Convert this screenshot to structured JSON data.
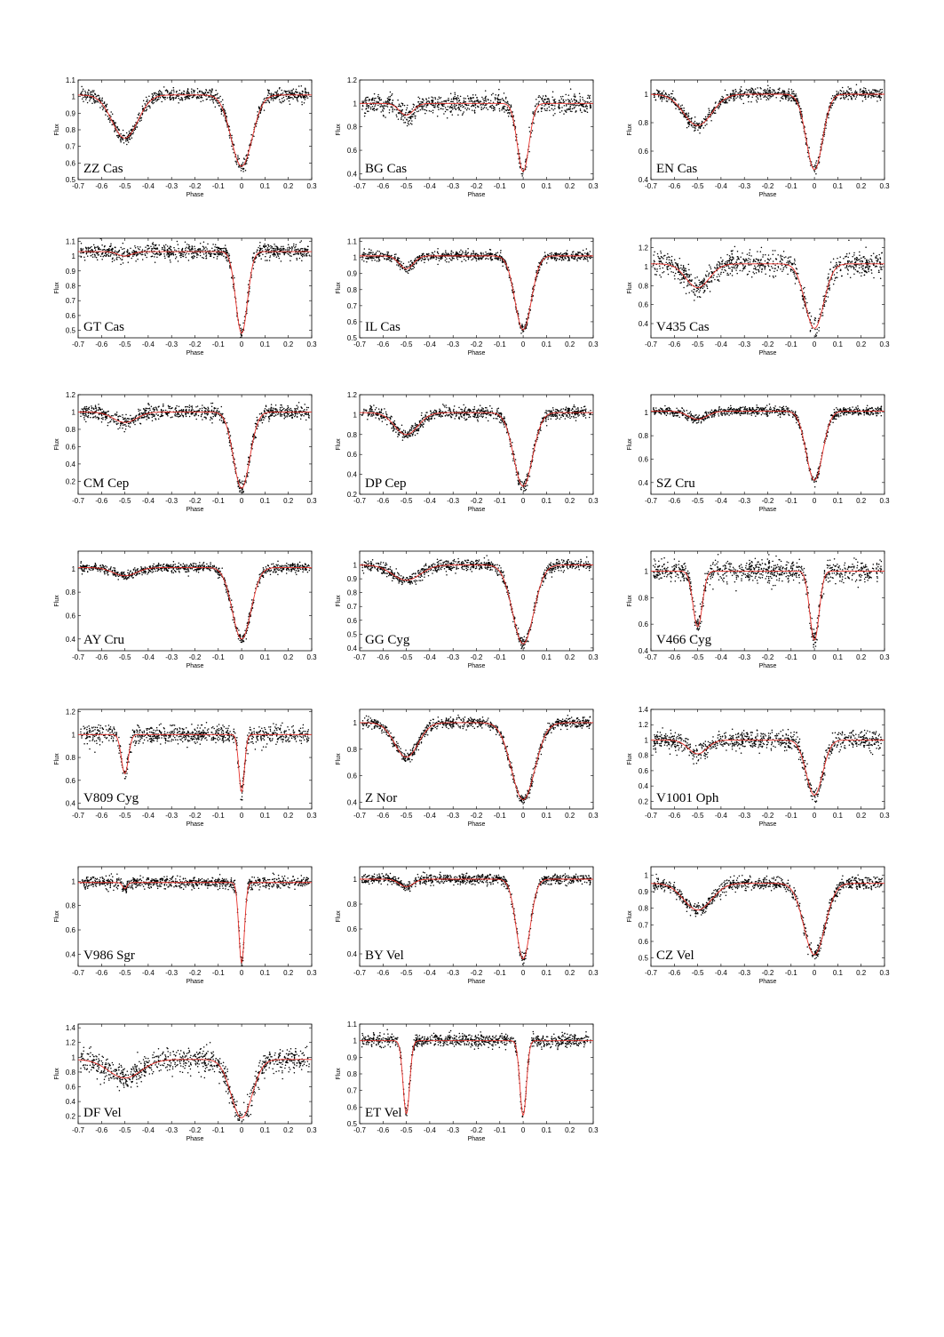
{
  "colors": {
    "model": "#e8302a",
    "points": "#000000",
    "frame": "#000000"
  },
  "chart_data": [
    {
      "type": "scatter",
      "title": "ZZ Cas",
      "xlabel": "Phase",
      "ylabel": "Flux",
      "xlim": [
        -0.7,
        0.3
      ],
      "ylim": [
        0.5,
        1.1
      ],
      "xticks": [
        "-0.7",
        "-0.6",
        "-0.5",
        "-0.4",
        "-0.3",
        "-0.2",
        "-0.1",
        "0",
        "0.1",
        "0.2",
        "0.3"
      ],
      "yticks": [
        "0.5",
        "0.6",
        "0.7",
        "0.8",
        "0.9",
        "1",
        "1.1"
      ],
      "series": [
        {
          "baseline": 1.01,
          "primary_min": 0.58,
          "secondary_min": 0.75,
          "width_p": 0.045,
          "width_s": 0.055,
          "scatter": 0.02
        }
      ]
    },
    {
      "type": "scatter",
      "title": "BG Cas",
      "xlabel": "Phase",
      "ylabel": "Flux",
      "xlim": [
        -0.7,
        0.3
      ],
      "ylim": [
        0.35,
        1.2
      ],
      "xticks": [
        "-0.7",
        "-0.6",
        "-0.5",
        "-0.4",
        "-0.3",
        "-0.2",
        "-0.1",
        "0",
        "0.1",
        "0.2",
        "0.3"
      ],
      "yticks": [
        "0.4",
        "0.6",
        "0.8",
        "1",
        "1.2"
      ],
      "series": [
        {
          "baseline": 1.0,
          "primary_min": 0.42,
          "secondary_min": 0.9,
          "width_p": 0.025,
          "width_s": 0.03,
          "scatter": 0.04
        }
      ]
    },
    {
      "type": "scatter",
      "title": "EN Cas",
      "xlabel": "Phase",
      "ylabel": "Flux",
      "xlim": [
        -0.7,
        0.3
      ],
      "ylim": [
        0.4,
        1.1
      ],
      "xticks": [
        "-0.7",
        "-0.6",
        "-0.5",
        "-0.4",
        "-0.3",
        "-0.2",
        "-0.1",
        "0",
        "0.1",
        "0.2",
        "0.3"
      ],
      "yticks": [
        "0.4",
        "0.6",
        "0.8",
        "1"
      ],
      "series": [
        {
          "baseline": 1.0,
          "primary_min": 0.47,
          "secondary_min": 0.78,
          "width_p": 0.035,
          "width_s": 0.06,
          "scatter": 0.02
        }
      ]
    },
    {
      "type": "scatter",
      "title": "GT Cas",
      "xlabel": "Phase",
      "ylabel": "Flux",
      "xlim": [
        -0.7,
        0.3
      ],
      "ylim": [
        0.45,
        1.12
      ],
      "xticks": [
        "-0.7",
        "-0.6",
        "-0.5",
        "-0.4",
        "-0.3",
        "-0.2",
        "-0.1",
        "0",
        "0.1",
        "0.2",
        "0.3"
      ],
      "yticks": [
        "0.5",
        "0.6",
        "0.7",
        "0.8",
        "0.9",
        "1",
        "1.1"
      ],
      "series": [
        {
          "baseline": 1.03,
          "primary_min": 0.48,
          "secondary_min": 1.0,
          "width_p": 0.025,
          "width_s": 0.03,
          "scatter": 0.025
        }
      ]
    },
    {
      "type": "scatter",
      "title": "IL Cas",
      "xlabel": "Phase",
      "ylabel": "Flux",
      "xlim": [
        -0.7,
        0.3
      ],
      "ylim": [
        0.5,
        1.12
      ],
      "xticks": [
        "-0.7",
        "-0.6",
        "-0.5",
        "-0.4",
        "-0.3",
        "-0.2",
        "-0.1",
        "0",
        "0.1",
        "0.2",
        "0.3"
      ],
      "yticks": [
        "0.5",
        "0.6",
        "0.7",
        "0.8",
        "0.9",
        "1",
        "1.1"
      ],
      "series": [
        {
          "baseline": 1.01,
          "primary_min": 0.55,
          "secondary_min": 0.93,
          "width_p": 0.035,
          "width_s": 0.03,
          "scatter": 0.015
        }
      ]
    },
    {
      "type": "scatter",
      "title": "V435 Cas",
      "xlabel": "Phase",
      "ylabel": "Flux",
      "xlim": [
        -0.7,
        0.3
      ],
      "ylim": [
        0.25,
        1.3
      ],
      "xticks": [
        "-0.7",
        "-0.6",
        "-0.5",
        "-0.4",
        "-0.3",
        "-0.2",
        "-0.1",
        "0",
        "0.1",
        "0.2",
        "0.3"
      ],
      "yticks": [
        "0.4",
        "0.6",
        "0.8",
        "1",
        "1.2"
      ],
      "series": [
        {
          "baseline": 1.03,
          "primary_min": 0.35,
          "secondary_min": 0.78,
          "width_p": 0.04,
          "width_s": 0.05,
          "scatter": 0.06
        }
      ]
    },
    {
      "type": "scatter",
      "title": "CM Cep",
      "xlabel": "Phase",
      "ylabel": "Flux",
      "xlim": [
        -0.7,
        0.3
      ],
      "ylim": [
        0.05,
        1.2
      ],
      "xticks": [
        "-0.7",
        "-0.6",
        "-0.5",
        "-0.4",
        "-0.3",
        "-0.2",
        "-0.1",
        "0",
        "0.1",
        "0.2",
        "0.3"
      ],
      "yticks": [
        "0.2",
        "0.4",
        "0.6",
        "0.8",
        "1",
        "1.2"
      ],
      "series": [
        {
          "baseline": 1.0,
          "primary_min": 0.12,
          "secondary_min": 0.88,
          "width_p": 0.035,
          "width_s": 0.05,
          "scatter": 0.04
        }
      ]
    },
    {
      "type": "scatter",
      "title": "DP Cep",
      "xlabel": "Phase",
      "ylabel": "Flux",
      "xlim": [
        -0.7,
        0.3
      ],
      "ylim": [
        0.2,
        1.2
      ],
      "xticks": [
        "-0.7",
        "-0.6",
        "-0.5",
        "-0.4",
        "-0.3",
        "-0.2",
        "-0.1",
        "0",
        "0.1",
        "0.2",
        "0.3"
      ],
      "yticks": [
        "0.2",
        "0.4",
        "0.6",
        "0.8",
        "1",
        "1.2"
      ],
      "series": [
        {
          "baseline": 1.02,
          "primary_min": 0.28,
          "secondary_min": 0.8,
          "width_p": 0.04,
          "width_s": 0.05,
          "scatter": 0.03
        }
      ]
    },
    {
      "type": "scatter",
      "title": "SZ Cru",
      "xlabel": "Phase",
      "ylabel": "Flux",
      "xlim": [
        -0.7,
        0.3
      ],
      "ylim": [
        0.3,
        1.15
      ],
      "xticks": [
        "-0.7",
        "-0.6",
        "-0.5",
        "-0.4",
        "-0.3",
        "-0.2",
        "-0.1",
        "0",
        "0.1",
        "0.2",
        "0.3"
      ],
      "yticks": [
        "0.4",
        "0.6",
        "0.8",
        "1"
      ],
      "series": [
        {
          "baseline": 1.01,
          "primary_min": 0.42,
          "secondary_min": 0.94,
          "width_p": 0.035,
          "width_s": 0.04,
          "scatter": 0.02
        }
      ]
    },
    {
      "type": "scatter",
      "title": "AY Cru",
      "xlabel": "Phase",
      "ylabel": "Flux",
      "xlim": [
        -0.7,
        0.3
      ],
      "ylim": [
        0.3,
        1.15
      ],
      "xticks": [
        "-0.7",
        "-0.6",
        "-0.5",
        "-0.4",
        "-0.3",
        "-0.2",
        "-0.1",
        "0",
        "0.1",
        "0.2",
        "0.3"
      ],
      "yticks": [
        "0.4",
        "0.6",
        "0.8",
        "1"
      ],
      "series": [
        {
          "baseline": 1.01,
          "primary_min": 0.4,
          "secondary_min": 0.94,
          "width_p": 0.04,
          "width_s": 0.05,
          "scatter": 0.02
        }
      ]
    },
    {
      "type": "scatter",
      "title": "GG Cyg",
      "xlabel": "Phase",
      "ylabel": "Flux",
      "xlim": [
        -0.7,
        0.3
      ],
      "ylim": [
        0.38,
        1.1
      ],
      "xticks": [
        "-0.7",
        "-0.6",
        "-0.5",
        "-0.4",
        "-0.3",
        "-0.2",
        "-0.1",
        "0",
        "0.1",
        "0.2",
        "0.3"
      ],
      "yticks": [
        "0.4",
        "0.5",
        "0.6",
        "0.7",
        "0.8",
        "0.9",
        "1"
      ],
      "series": [
        {
          "baseline": 1.0,
          "primary_min": 0.43,
          "secondary_min": 0.89,
          "width_p": 0.045,
          "width_s": 0.06,
          "scatter": 0.02
        }
      ]
    },
    {
      "type": "scatter",
      "title": "V466 Cyg",
      "xlabel": "Phase",
      "ylabel": "Flux",
      "xlim": [
        -0.7,
        0.3
      ],
      "ylim": [
        0.4,
        1.15
      ],
      "xticks": [
        "-0.7",
        "-0.6",
        "-0.5",
        "-0.4",
        "-0.3",
        "-0.2",
        "-0.1",
        "0",
        "0.1",
        "0.2",
        "0.3"
      ],
      "yticks": [
        "0.4",
        "0.6",
        "0.8",
        "1"
      ],
      "series": [
        {
          "baseline": 1.0,
          "primary_min": 0.48,
          "secondary_min": 0.58,
          "width_p": 0.02,
          "width_s": 0.02,
          "scatter": 0.04
        }
      ]
    },
    {
      "type": "scatter",
      "title": "V809 Cyg",
      "xlabel": "Phase",
      "ylabel": "Flux",
      "xlim": [
        -0.7,
        0.3
      ],
      "ylim": [
        0.35,
        1.22
      ],
      "xticks": [
        "-0.7",
        "-0.6",
        "-0.5",
        "-0.4",
        "-0.3",
        "-0.2",
        "-0.1",
        "0",
        "0.1",
        "0.2",
        "0.3"
      ],
      "yticks": [
        "0.4",
        "0.6",
        "0.8",
        "1",
        "1.2"
      ],
      "series": [
        {
          "baseline": 1.0,
          "primary_min": 0.5,
          "secondary_min": 0.66,
          "width_p": 0.012,
          "width_s": 0.015,
          "scatter": 0.04
        }
      ]
    },
    {
      "type": "scatter",
      "title": "Z Nor",
      "xlabel": "Phase",
      "ylabel": "Flux",
      "xlim": [
        -0.7,
        0.3
      ],
      "ylim": [
        0.35,
        1.1
      ],
      "xticks": [
        "-0.7",
        "-0.6",
        "-0.5",
        "-0.4",
        "-0.3",
        "-0.2",
        "-0.1",
        "0",
        "0.1",
        "0.2",
        "0.3"
      ],
      "yticks": [
        "0.4",
        "0.6",
        "0.8",
        "1"
      ],
      "series": [
        {
          "baseline": 1.0,
          "primary_min": 0.42,
          "secondary_min": 0.74,
          "width_p": 0.05,
          "width_s": 0.05,
          "scatter": 0.02
        }
      ]
    },
    {
      "type": "scatter",
      "title": "V1001 Oph",
      "xlabel": "Phase",
      "ylabel": "Flux",
      "xlim": [
        -0.7,
        0.3
      ],
      "ylim": [
        0.1,
        1.4
      ],
      "xticks": [
        "-0.7",
        "-0.6",
        "-0.5",
        "-0.4",
        "-0.3",
        "-0.2",
        "-0.1",
        "0",
        "0.1",
        "0.2",
        "0.3"
      ],
      "yticks": [
        "0.2",
        "0.4",
        "0.6",
        "0.8",
        "1",
        "1.2",
        "1.4"
      ],
      "series": [
        {
          "baseline": 1.0,
          "primary_min": 0.28,
          "secondary_min": 0.82,
          "width_p": 0.035,
          "width_s": 0.04,
          "scatter": 0.06
        }
      ]
    },
    {
      "type": "scatter",
      "title": "V986 Sgr",
      "xlabel": "Phase",
      "ylabel": "Flux",
      "xlim": [
        -0.7,
        0.3
      ],
      "ylim": [
        0.3,
        1.12
      ],
      "xticks": [
        "-0.7",
        "-0.6",
        "-0.5",
        "-0.4",
        "-0.3",
        "-0.2",
        "-0.1",
        "0",
        "0.1",
        "0.2",
        "0.3"
      ],
      "yticks": [
        "0.4",
        "0.6",
        "0.8",
        "1"
      ],
      "series": [
        {
          "baseline": 0.99,
          "primary_min": 0.33,
          "secondary_min": 0.94,
          "width_p": 0.012,
          "width_s": 0.01,
          "scatter": 0.025
        }
      ]
    },
    {
      "type": "scatter",
      "title": "BY Vel",
      "xlabel": "Phase",
      "ylabel": "Flux",
      "xlim": [
        -0.7,
        0.3
      ],
      "ylim": [
        0.3,
        1.1
      ],
      "xticks": [
        "-0.7",
        "-0.6",
        "-0.5",
        "-0.4",
        "-0.3",
        "-0.2",
        "-0.1",
        "0",
        "0.1",
        "0.2",
        "0.3"
      ],
      "yticks": [
        "0.4",
        "0.6",
        "0.8",
        "1"
      ],
      "series": [
        {
          "baseline": 1.0,
          "primary_min": 0.36,
          "secondary_min": 0.94,
          "width_p": 0.03,
          "width_s": 0.03,
          "scatter": 0.02
        }
      ]
    },
    {
      "type": "scatter",
      "title": "CZ Vel",
      "xlabel": "Phase",
      "ylabel": "Flux",
      "xlim": [
        -0.7,
        0.3
      ],
      "ylim": [
        0.45,
        1.05
      ],
      "xticks": [
        "-0.7",
        "-0.6",
        "-0.5",
        "-0.4",
        "-0.3",
        "-0.2",
        "-0.1",
        "0",
        "0.1",
        "0.2",
        "0.3"
      ],
      "yticks": [
        "0.5",
        "0.6",
        "0.7",
        "0.8",
        "0.9",
        "1"
      ],
      "series": [
        {
          "baseline": 0.95,
          "primary_min": 0.52,
          "secondary_min": 0.79,
          "width_p": 0.045,
          "width_s": 0.06,
          "scatter": 0.02
        }
      ]
    },
    {
      "type": "scatter",
      "title": "DF Vel",
      "xlabel": "Phase",
      "ylabel": "Flux",
      "xlim": [
        -0.7,
        0.3
      ],
      "ylim": [
        0.1,
        1.45
      ],
      "xticks": [
        "-0.7",
        "-0.6",
        "-0.5",
        "-0.4",
        "-0.3",
        "-0.2",
        "-0.1",
        "0",
        "0.1",
        "0.2",
        "0.3"
      ],
      "yticks": [
        "0.2",
        "0.4",
        "0.6",
        "0.8",
        "1",
        "1.2",
        "1.4"
      ],
      "series": [
        {
          "baseline": 0.97,
          "primary_min": 0.18,
          "secondary_min": 0.72,
          "width_p": 0.045,
          "width_s": 0.07,
          "scatter": 0.08
        }
      ]
    },
    {
      "type": "scatter",
      "title": "ET Vel",
      "xlabel": "Phase",
      "ylabel": "Flux",
      "xlim": [
        -0.7,
        0.3
      ],
      "ylim": [
        0.5,
        1.1
      ],
      "xticks": [
        "-0.7",
        "-0.6",
        "-0.5",
        "-0.4",
        "-0.3",
        "-0.2",
        "-0.1",
        "0",
        "0.1",
        "0.2",
        "0.3"
      ],
      "yticks": [
        "0.5",
        "0.6",
        "0.7",
        "0.8",
        "0.9",
        "1",
        "1.1"
      ],
      "series": [
        {
          "baseline": 1.0,
          "primary_min": 0.55,
          "secondary_min": 0.56,
          "width_p": 0.014,
          "width_s": 0.014,
          "scatter": 0.02
        }
      ]
    }
  ]
}
